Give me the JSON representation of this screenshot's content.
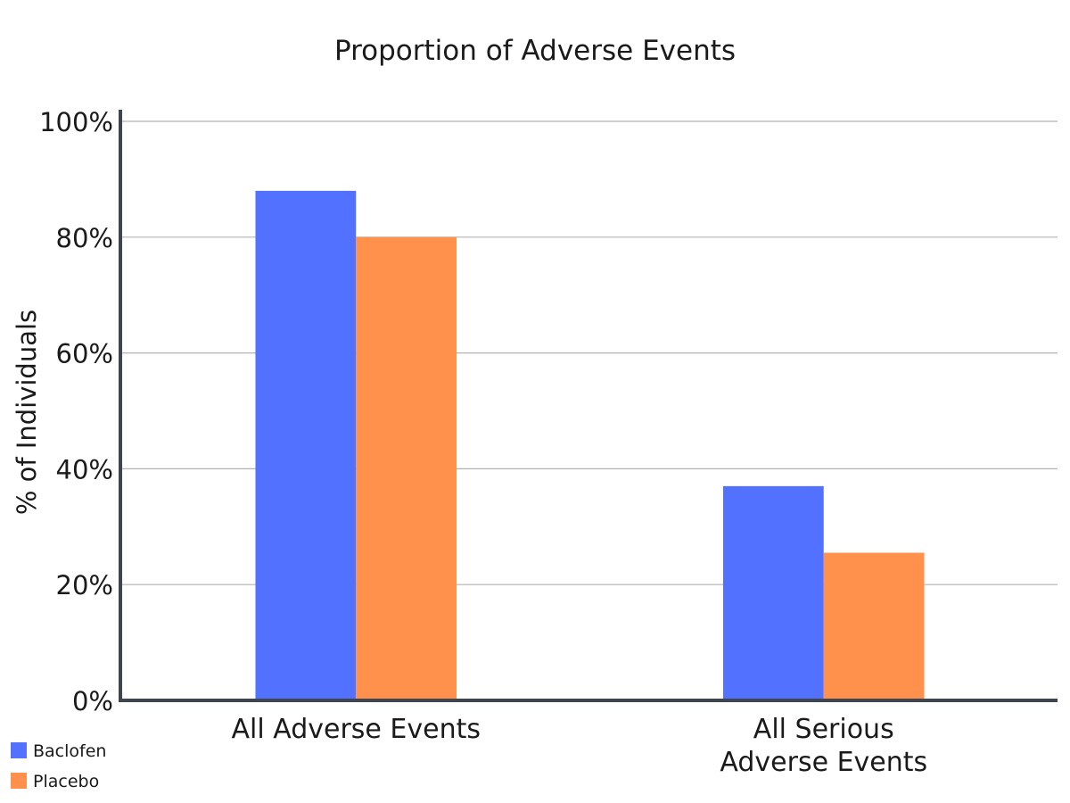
{
  "chart_data": {
    "type": "bar",
    "title": "Proportion of Adverse Events",
    "ylabel": "% of Individuals",
    "xlabel": "",
    "ylim": [
      0,
      100
    ],
    "yticks": [
      0,
      20,
      40,
      60,
      80,
      100
    ],
    "ytick_labels": [
      "0%",
      "20%",
      "40%",
      "60%",
      "80%",
      "100%"
    ],
    "categories": [
      [
        "All Adverse Events"
      ],
      [
        "All Serious",
        "Adverse Events"
      ]
    ],
    "series": [
      {
        "name": "Baclofen",
        "color": "#5271ff",
        "values": [
          88,
          37
        ]
      },
      {
        "name": "Placebo",
        "color": "#ff914d",
        "values": [
          80,
          25.5
        ]
      }
    ],
    "grid": true,
    "legend_position": "bottom-left"
  }
}
